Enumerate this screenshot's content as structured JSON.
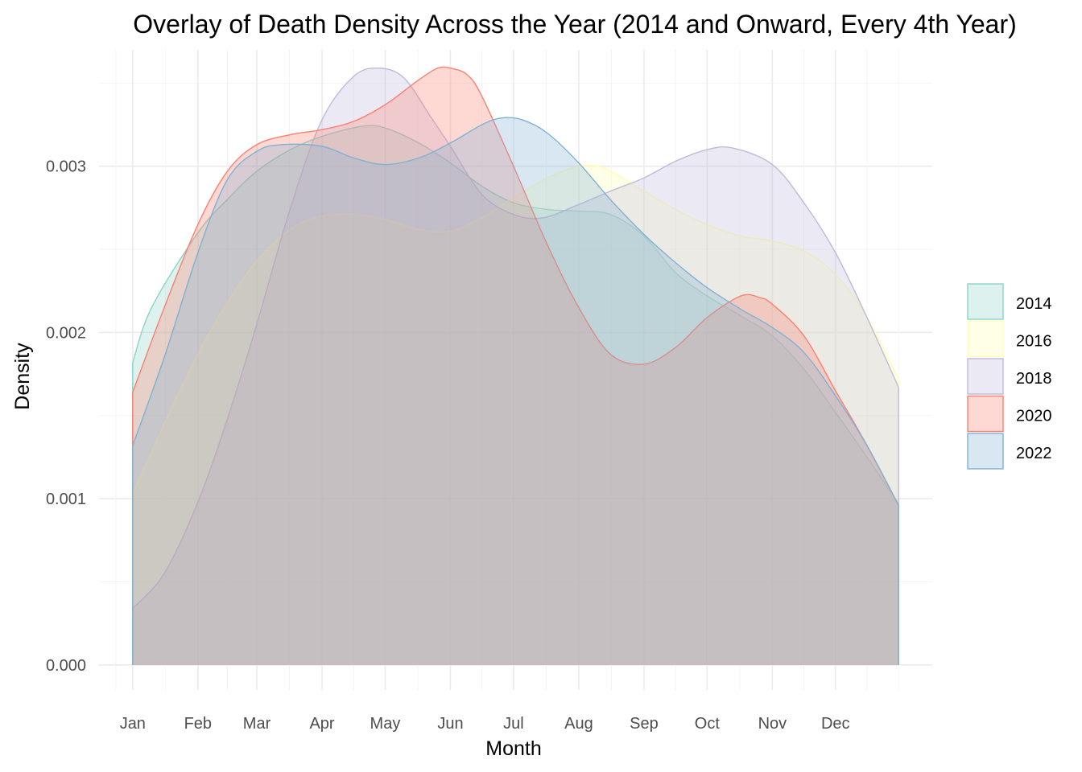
{
  "chart_data": {
    "type": "area",
    "title": "Overlay of Death Density Across the Year (2014 and Onward, Every 4th Year)",
    "xlabel": "Month",
    "ylabel": "Density",
    "x_tick_labels": [
      "Jan",
      "Feb",
      "Mar",
      "Apr",
      "May",
      "Jun",
      "Jul",
      "Aug",
      "Sep",
      "Oct",
      "Nov",
      "Dec"
    ],
    "x_tick_days": [
      1,
      32,
      60,
      91,
      121,
      152,
      182,
      213,
      244,
      274,
      305,
      335
    ],
    "xlim": [
      -15,
      381
    ],
    "x_data_range": [
      1,
      365
    ],
    "y_ticks": [
      0,
      0.001,
      0.002,
      0.003
    ],
    "y_tick_labels": [
      "0.000",
      "0.001",
      "0.002",
      "0.003"
    ],
    "ylim": [
      -0.00015,
      0.0037
    ],
    "grid": true,
    "legend_position": "right",
    "fill_opacity": 0.3,
    "series": [
      {
        "name": "2014",
        "color": "#8DD3C7",
        "points": [
          [
            1,
            0.00182
          ],
          [
            10,
            0.00215
          ],
          [
            32,
            0.0026
          ],
          [
            46,
            0.0028
          ],
          [
            60,
            0.00297
          ],
          [
            76,
            0.0031
          ],
          [
            91,
            0.00318
          ],
          [
            110,
            0.00324
          ],
          [
            121,
            0.00323
          ],
          [
            137,
            0.00314
          ],
          [
            152,
            0.00302
          ],
          [
            167,
            0.00288
          ],
          [
            182,
            0.00278
          ],
          [
            198,
            0.00274
          ],
          [
            213,
            0.00273
          ],
          [
            228,
            0.00271
          ],
          [
            244,
            0.00258
          ],
          [
            259,
            0.00236
          ],
          [
            274,
            0.00222
          ],
          [
            290,
            0.0021
          ],
          [
            305,
            0.00198
          ],
          [
            320,
            0.00178
          ],
          [
            335,
            0.00152
          ],
          [
            350,
            0.00125
          ],
          [
            365,
            0.00097
          ]
        ]
      },
      {
        "name": "2016",
        "color": "#FFFFB3",
        "points": [
          [
            1,
            0.00103
          ],
          [
            16,
            0.00145
          ],
          [
            32,
            0.00187
          ],
          [
            46,
            0.00218
          ],
          [
            60,
            0.00243
          ],
          [
            76,
            0.00262
          ],
          [
            91,
            0.0027
          ],
          [
            106,
            0.00271
          ],
          [
            121,
            0.00268
          ],
          [
            137,
            0.00262
          ],
          [
            152,
            0.00261
          ],
          [
            167,
            0.00269
          ],
          [
            182,
            0.00281
          ],
          [
            198,
            0.00293
          ],
          [
            213,
            0.003
          ],
          [
            222,
            0.003
          ],
          [
            228,
            0.00297
          ],
          [
            244,
            0.00285
          ],
          [
            259,
            0.00274
          ],
          [
            274,
            0.00265
          ],
          [
            290,
            0.00258
          ],
          [
            305,
            0.00255
          ],
          [
            320,
            0.00249
          ],
          [
            335,
            0.00235
          ],
          [
            350,
            0.00209
          ],
          [
            365,
            0.00172
          ]
        ]
      },
      {
        "name": "2018",
        "color": "#BEBADA",
        "points": [
          [
            1,
            0.00034
          ],
          [
            16,
            0.00055
          ],
          [
            32,
            0.00098
          ],
          [
            46,
            0.00148
          ],
          [
            60,
            0.00205
          ],
          [
            76,
            0.00275
          ],
          [
            91,
            0.00328
          ],
          [
            106,
            0.00354
          ],
          [
            118,
            0.00359
          ],
          [
            130,
            0.00353
          ],
          [
            143,
            0.00329
          ],
          [
            152,
            0.00312
          ],
          [
            167,
            0.00283
          ],
          [
            182,
            0.00271
          ],
          [
            196,
            0.00269
          ],
          [
            213,
            0.00277
          ],
          [
            228,
            0.00285
          ],
          [
            244,
            0.00293
          ],
          [
            259,
            0.00303
          ],
          [
            274,
            0.0031
          ],
          [
            286,
            0.00311
          ],
          [
            305,
            0.00301
          ],
          [
            320,
            0.00278
          ],
          [
            335,
            0.00248
          ],
          [
            350,
            0.00209
          ],
          [
            365,
            0.00167
          ]
        ]
      },
      {
        "name": "2020",
        "color": "#FB8072",
        "points": [
          [
            1,
            0.00164
          ],
          [
            16,
            0.00215
          ],
          [
            32,
            0.00265
          ],
          [
            46,
            0.00297
          ],
          [
            60,
            0.00313
          ],
          [
            76,
            0.00319
          ],
          [
            91,
            0.00322
          ],
          [
            106,
            0.00327
          ],
          [
            121,
            0.00337
          ],
          [
            137,
            0.00352
          ],
          [
            146,
            0.00359
          ],
          [
            152,
            0.00359
          ],
          [
            160,
            0.00355
          ],
          [
            167,
            0.00342
          ],
          [
            182,
            0.003
          ],
          [
            198,
            0.00253
          ],
          [
            213,
            0.00215
          ],
          [
            228,
            0.00187
          ],
          [
            244,
            0.00181
          ],
          [
            259,
            0.00191
          ],
          [
            274,
            0.00209
          ],
          [
            290,
            0.00222
          ],
          [
            299,
            0.00221
          ],
          [
            305,
            0.00217
          ],
          [
            320,
            0.00198
          ],
          [
            335,
            0.00165
          ],
          [
            350,
            0.00132
          ],
          [
            365,
            0.00096
          ]
        ]
      },
      {
        "name": "2022",
        "color": "#80B1D3",
        "points": [
          [
            1,
            0.00132
          ],
          [
            16,
            0.00185
          ],
          [
            32,
            0.00248
          ],
          [
            46,
            0.00292
          ],
          [
            60,
            0.00309
          ],
          [
            72,
            0.00313
          ],
          [
            91,
            0.00312
          ],
          [
            106,
            0.00305
          ],
          [
            121,
            0.00301
          ],
          [
            137,
            0.00305
          ],
          [
            152,
            0.00314
          ],
          [
            167,
            0.00325
          ],
          [
            176,
            0.00329
          ],
          [
            186,
            0.00328
          ],
          [
            198,
            0.0032
          ],
          [
            213,
            0.00302
          ],
          [
            228,
            0.0028
          ],
          [
            244,
            0.00259
          ],
          [
            259,
            0.00242
          ],
          [
            274,
            0.00227
          ],
          [
            290,
            0.00214
          ],
          [
            305,
            0.00203
          ],
          [
            320,
            0.00188
          ],
          [
            335,
            0.00162
          ],
          [
            350,
            0.00132
          ],
          [
            365,
            0.00096
          ]
        ]
      }
    ]
  }
}
